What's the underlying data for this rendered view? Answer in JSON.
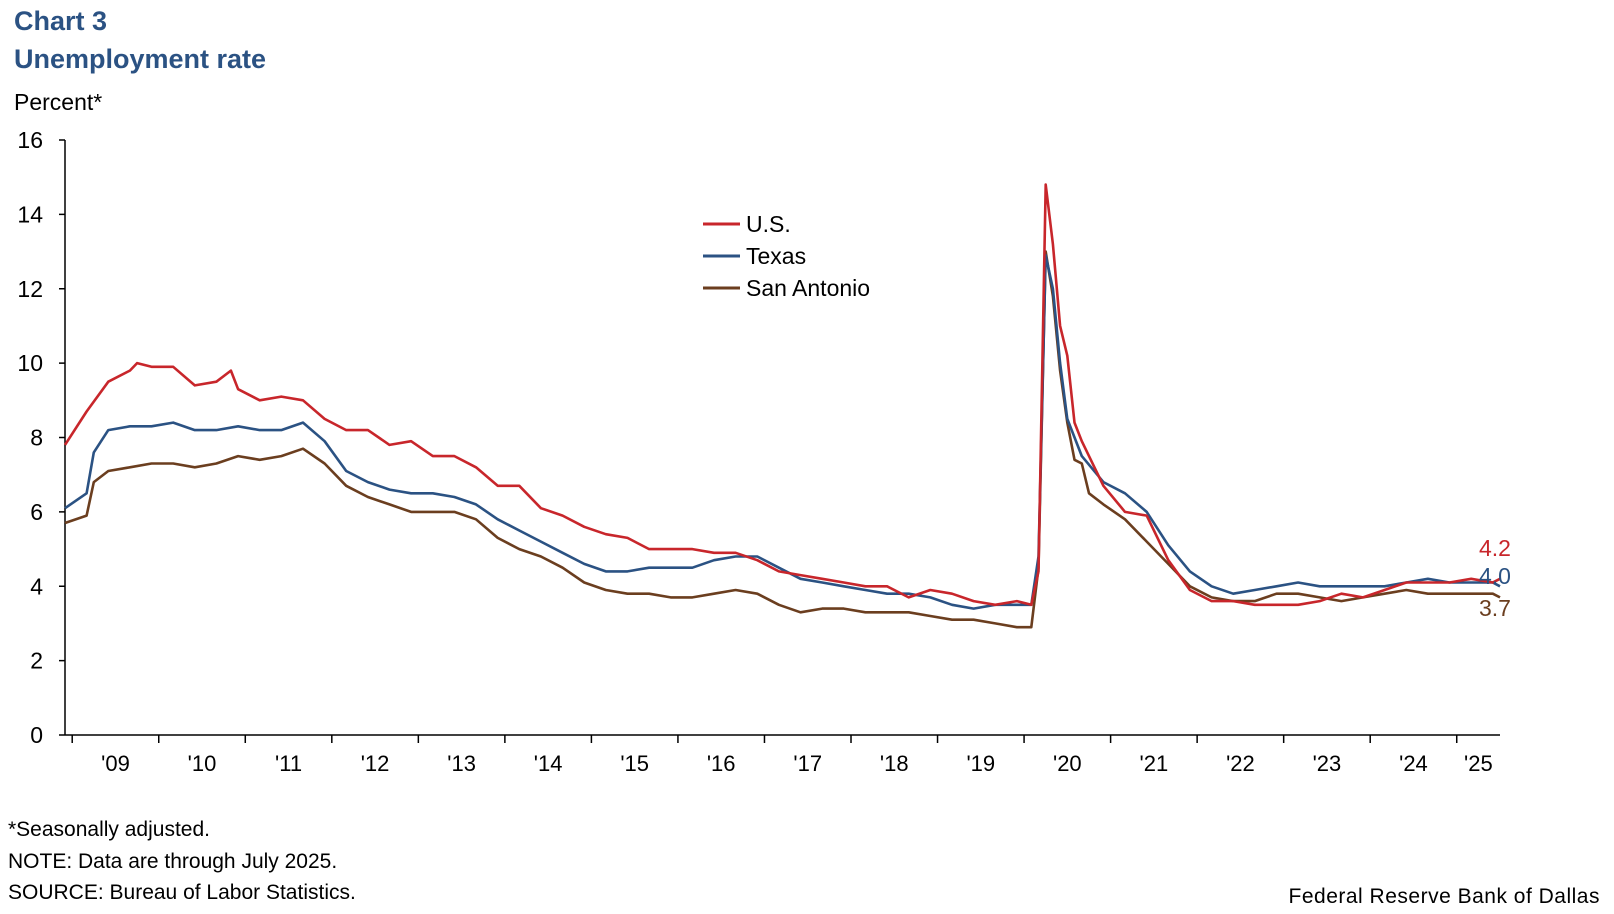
{
  "header": {
    "chart_number": "Chart 3",
    "title": "Unemployment rate",
    "unit_label": "Percent*"
  },
  "footer": {
    "footnote": "*Seasonally adjusted.",
    "note": "NOTE: Data are through July 2025.",
    "source": "SOURCE: Bureau of Labor Statistics.",
    "credit": "Federal Reserve Bank of Dallas"
  },
  "chart_data": {
    "type": "line",
    "title": "Unemployment rate",
    "ylabel": "Percent*",
    "xlabel": "",
    "ylim": [
      0,
      16
    ],
    "y_ticks": [
      0,
      2,
      4,
      6,
      8,
      10,
      12,
      14,
      16
    ],
    "x_tick_labels": [
      "'09",
      "'10",
      "'11",
      "'12",
      "'13",
      "'14",
      "'15",
      "'16",
      "'17",
      "'18",
      "'19",
      "'20",
      "'21",
      "'22",
      "'23",
      "'24",
      "'25"
    ],
    "x_start": "2008-12",
    "x_end": "2025-07",
    "grid": false,
    "legend_position": "upper-center",
    "series": [
      {
        "name": "U.S.",
        "color": "#C8262B",
        "end_label": "4.2",
        "points": [
          [
            "2008-12",
            7.8
          ],
          [
            "2009-03",
            8.7
          ],
          [
            "2009-06",
            9.5
          ],
          [
            "2009-09",
            9.8
          ],
          [
            "2009-10",
            10.0
          ],
          [
            "2009-12",
            9.9
          ],
          [
            "2010-03",
            9.9
          ],
          [
            "2010-06",
            9.4
          ],
          [
            "2010-09",
            9.5
          ],
          [
            "2010-11",
            9.8
          ],
          [
            "2010-12",
            9.3
          ],
          [
            "2011-03",
            9.0
          ],
          [
            "2011-06",
            9.1
          ],
          [
            "2011-09",
            9.0
          ],
          [
            "2011-12",
            8.5
          ],
          [
            "2012-03",
            8.2
          ],
          [
            "2012-06",
            8.2
          ],
          [
            "2012-09",
            7.8
          ],
          [
            "2012-12",
            7.9
          ],
          [
            "2013-03",
            7.5
          ],
          [
            "2013-06",
            7.5
          ],
          [
            "2013-09",
            7.2
          ],
          [
            "2013-12",
            6.7
          ],
          [
            "2014-03",
            6.7
          ],
          [
            "2014-06",
            6.1
          ],
          [
            "2014-09",
            5.9
          ],
          [
            "2014-12",
            5.6
          ],
          [
            "2015-03",
            5.4
          ],
          [
            "2015-06",
            5.3
          ],
          [
            "2015-09",
            5.0
          ],
          [
            "2015-12",
            5.0
          ],
          [
            "2016-03",
            5.0
          ],
          [
            "2016-06",
            4.9
          ],
          [
            "2016-09",
            4.9
          ],
          [
            "2016-12",
            4.7
          ],
          [
            "2017-03",
            4.4
          ],
          [
            "2017-06",
            4.3
          ],
          [
            "2017-09",
            4.2
          ],
          [
            "2017-12",
            4.1
          ],
          [
            "2018-03",
            4.0
          ],
          [
            "2018-06",
            4.0
          ],
          [
            "2018-09",
            3.7
          ],
          [
            "2018-12",
            3.9
          ],
          [
            "2019-03",
            3.8
          ],
          [
            "2019-06",
            3.6
          ],
          [
            "2019-09",
            3.5
          ],
          [
            "2019-12",
            3.6
          ],
          [
            "2020-02",
            3.5
          ],
          [
            "2020-03",
            4.4
          ],
          [
            "2020-04",
            14.8
          ],
          [
            "2020-05",
            13.2
          ],
          [
            "2020-06",
            11.0
          ],
          [
            "2020-07",
            10.2
          ],
          [
            "2020-08",
            8.4
          ],
          [
            "2020-09",
            7.9
          ],
          [
            "2020-12",
            6.7
          ],
          [
            "2021-03",
            6.0
          ],
          [
            "2021-06",
            5.9
          ],
          [
            "2021-09",
            4.7
          ],
          [
            "2021-12",
            3.9
          ],
          [
            "2022-03",
            3.6
          ],
          [
            "2022-06",
            3.6
          ],
          [
            "2022-09",
            3.5
          ],
          [
            "2022-12",
            3.5
          ],
          [
            "2023-03",
            3.5
          ],
          [
            "2023-06",
            3.6
          ],
          [
            "2023-09",
            3.8
          ],
          [
            "2023-12",
            3.7
          ],
          [
            "2024-03",
            3.9
          ],
          [
            "2024-06",
            4.1
          ],
          [
            "2024-09",
            4.1
          ],
          [
            "2024-12",
            4.1
          ],
          [
            "2025-03",
            4.2
          ],
          [
            "2025-06",
            4.1
          ],
          [
            "2025-07",
            4.2
          ]
        ]
      },
      {
        "name": "Texas",
        "color": "#2B5283",
        "end_label": "4.0",
        "points": [
          [
            "2008-12",
            6.1
          ],
          [
            "2009-03",
            6.5
          ],
          [
            "2009-04",
            7.6
          ],
          [
            "2009-06",
            8.2
          ],
          [
            "2009-09",
            8.3
          ],
          [
            "2009-12",
            8.3
          ],
          [
            "2010-03",
            8.4
          ],
          [
            "2010-06",
            8.2
          ],
          [
            "2010-09",
            8.2
          ],
          [
            "2010-12",
            8.3
          ],
          [
            "2011-03",
            8.2
          ],
          [
            "2011-06",
            8.2
          ],
          [
            "2011-09",
            8.4
          ],
          [
            "2011-12",
            7.9
          ],
          [
            "2012-03",
            7.1
          ],
          [
            "2012-06",
            6.8
          ],
          [
            "2012-09",
            6.6
          ],
          [
            "2012-12",
            6.5
          ],
          [
            "2013-03",
            6.5
          ],
          [
            "2013-06",
            6.4
          ],
          [
            "2013-09",
            6.2
          ],
          [
            "2013-12",
            5.8
          ],
          [
            "2014-03",
            5.5
          ],
          [
            "2014-06",
            5.2
          ],
          [
            "2014-09",
            4.9
          ],
          [
            "2014-12",
            4.6
          ],
          [
            "2015-03",
            4.4
          ],
          [
            "2015-06",
            4.4
          ],
          [
            "2015-09",
            4.5
          ],
          [
            "2015-12",
            4.5
          ],
          [
            "2016-03",
            4.5
          ],
          [
            "2016-06",
            4.7
          ],
          [
            "2016-09",
            4.8
          ],
          [
            "2016-12",
            4.8
          ],
          [
            "2017-03",
            4.5
          ],
          [
            "2017-06",
            4.2
          ],
          [
            "2017-09",
            4.1
          ],
          [
            "2017-12",
            4.0
          ],
          [
            "2018-03",
            3.9
          ],
          [
            "2018-06",
            3.8
          ],
          [
            "2018-09",
            3.8
          ],
          [
            "2018-12",
            3.7
          ],
          [
            "2019-03",
            3.5
          ],
          [
            "2019-06",
            3.4
          ],
          [
            "2019-09",
            3.5
          ],
          [
            "2019-12",
            3.5
          ],
          [
            "2020-02",
            3.5
          ],
          [
            "2020-03",
            4.8
          ],
          [
            "2020-04",
            12.9
          ],
          [
            "2020-05",
            12.0
          ],
          [
            "2020-06",
            10.0
          ],
          [
            "2020-07",
            8.5
          ],
          [
            "2020-09",
            7.5
          ],
          [
            "2020-12",
            6.8
          ],
          [
            "2021-03",
            6.5
          ],
          [
            "2021-06",
            6.0
          ],
          [
            "2021-09",
            5.1
          ],
          [
            "2021-12",
            4.4
          ],
          [
            "2022-03",
            4.0
          ],
          [
            "2022-06",
            3.8
          ],
          [
            "2022-09",
            3.9
          ],
          [
            "2022-12",
            4.0
          ],
          [
            "2023-03",
            4.1
          ],
          [
            "2023-06",
            4.0
          ],
          [
            "2023-09",
            4.0
          ],
          [
            "2023-12",
            4.0
          ],
          [
            "2024-03",
            4.0
          ],
          [
            "2024-06",
            4.1
          ],
          [
            "2024-09",
            4.2
          ],
          [
            "2024-12",
            4.1
          ],
          [
            "2025-03",
            4.1
          ],
          [
            "2025-06",
            4.1
          ],
          [
            "2025-07",
            4.0
          ]
        ]
      },
      {
        "name": "San Antonio",
        "color": "#6B3E1F",
        "end_label": "3.7",
        "points": [
          [
            "2008-12",
            5.7
          ],
          [
            "2009-03",
            5.9
          ],
          [
            "2009-04",
            6.8
          ],
          [
            "2009-06",
            7.1
          ],
          [
            "2009-09",
            7.2
          ],
          [
            "2009-12",
            7.3
          ],
          [
            "2010-03",
            7.3
          ],
          [
            "2010-06",
            7.2
          ],
          [
            "2010-09",
            7.3
          ],
          [
            "2010-12",
            7.5
          ],
          [
            "2011-03",
            7.4
          ],
          [
            "2011-06",
            7.5
          ],
          [
            "2011-09",
            7.7
          ],
          [
            "2011-12",
            7.3
          ],
          [
            "2012-03",
            6.7
          ],
          [
            "2012-06",
            6.4
          ],
          [
            "2012-09",
            6.2
          ],
          [
            "2012-12",
            6.0
          ],
          [
            "2013-03",
            6.0
          ],
          [
            "2013-06",
            6.0
          ],
          [
            "2013-09",
            5.8
          ],
          [
            "2013-12",
            5.3
          ],
          [
            "2014-03",
            5.0
          ],
          [
            "2014-06",
            4.8
          ],
          [
            "2014-09",
            4.5
          ],
          [
            "2014-12",
            4.1
          ],
          [
            "2015-03",
            3.9
          ],
          [
            "2015-06",
            3.8
          ],
          [
            "2015-09",
            3.8
          ],
          [
            "2015-12",
            3.7
          ],
          [
            "2016-03",
            3.7
          ],
          [
            "2016-06",
            3.8
          ],
          [
            "2016-09",
            3.9
          ],
          [
            "2016-12",
            3.8
          ],
          [
            "2017-03",
            3.5
          ],
          [
            "2017-06",
            3.3
          ],
          [
            "2017-09",
            3.4
          ],
          [
            "2017-12",
            3.4
          ],
          [
            "2018-03",
            3.3
          ],
          [
            "2018-06",
            3.3
          ],
          [
            "2018-09",
            3.3
          ],
          [
            "2018-12",
            3.2
          ],
          [
            "2019-03",
            3.1
          ],
          [
            "2019-06",
            3.1
          ],
          [
            "2019-09",
            3.0
          ],
          [
            "2019-12",
            2.9
          ],
          [
            "2020-02",
            2.9
          ],
          [
            "2020-03",
            4.5
          ],
          [
            "2020-04",
            13.0
          ],
          [
            "2020-05",
            11.8
          ],
          [
            "2020-06",
            9.8
          ],
          [
            "2020-07",
            8.4
          ],
          [
            "2020-08",
            7.4
          ],
          [
            "2020-09",
            7.3
          ],
          [
            "2020-10",
            6.5
          ],
          [
            "2020-12",
            6.2
          ],
          [
            "2021-03",
            5.8
          ],
          [
            "2021-06",
            5.2
          ],
          [
            "2021-09",
            4.6
          ],
          [
            "2021-12",
            4.0
          ],
          [
            "2022-03",
            3.7
          ],
          [
            "2022-06",
            3.6
          ],
          [
            "2022-09",
            3.6
          ],
          [
            "2022-12",
            3.8
          ],
          [
            "2023-03",
            3.8
          ],
          [
            "2023-06",
            3.7
          ],
          [
            "2023-09",
            3.6
          ],
          [
            "2023-12",
            3.7
          ],
          [
            "2024-03",
            3.8
          ],
          [
            "2024-06",
            3.9
          ],
          [
            "2024-09",
            3.8
          ],
          [
            "2024-12",
            3.8
          ],
          [
            "2025-03",
            3.8
          ],
          [
            "2025-06",
            3.8
          ],
          [
            "2025-07",
            3.7
          ]
        ]
      }
    ]
  }
}
